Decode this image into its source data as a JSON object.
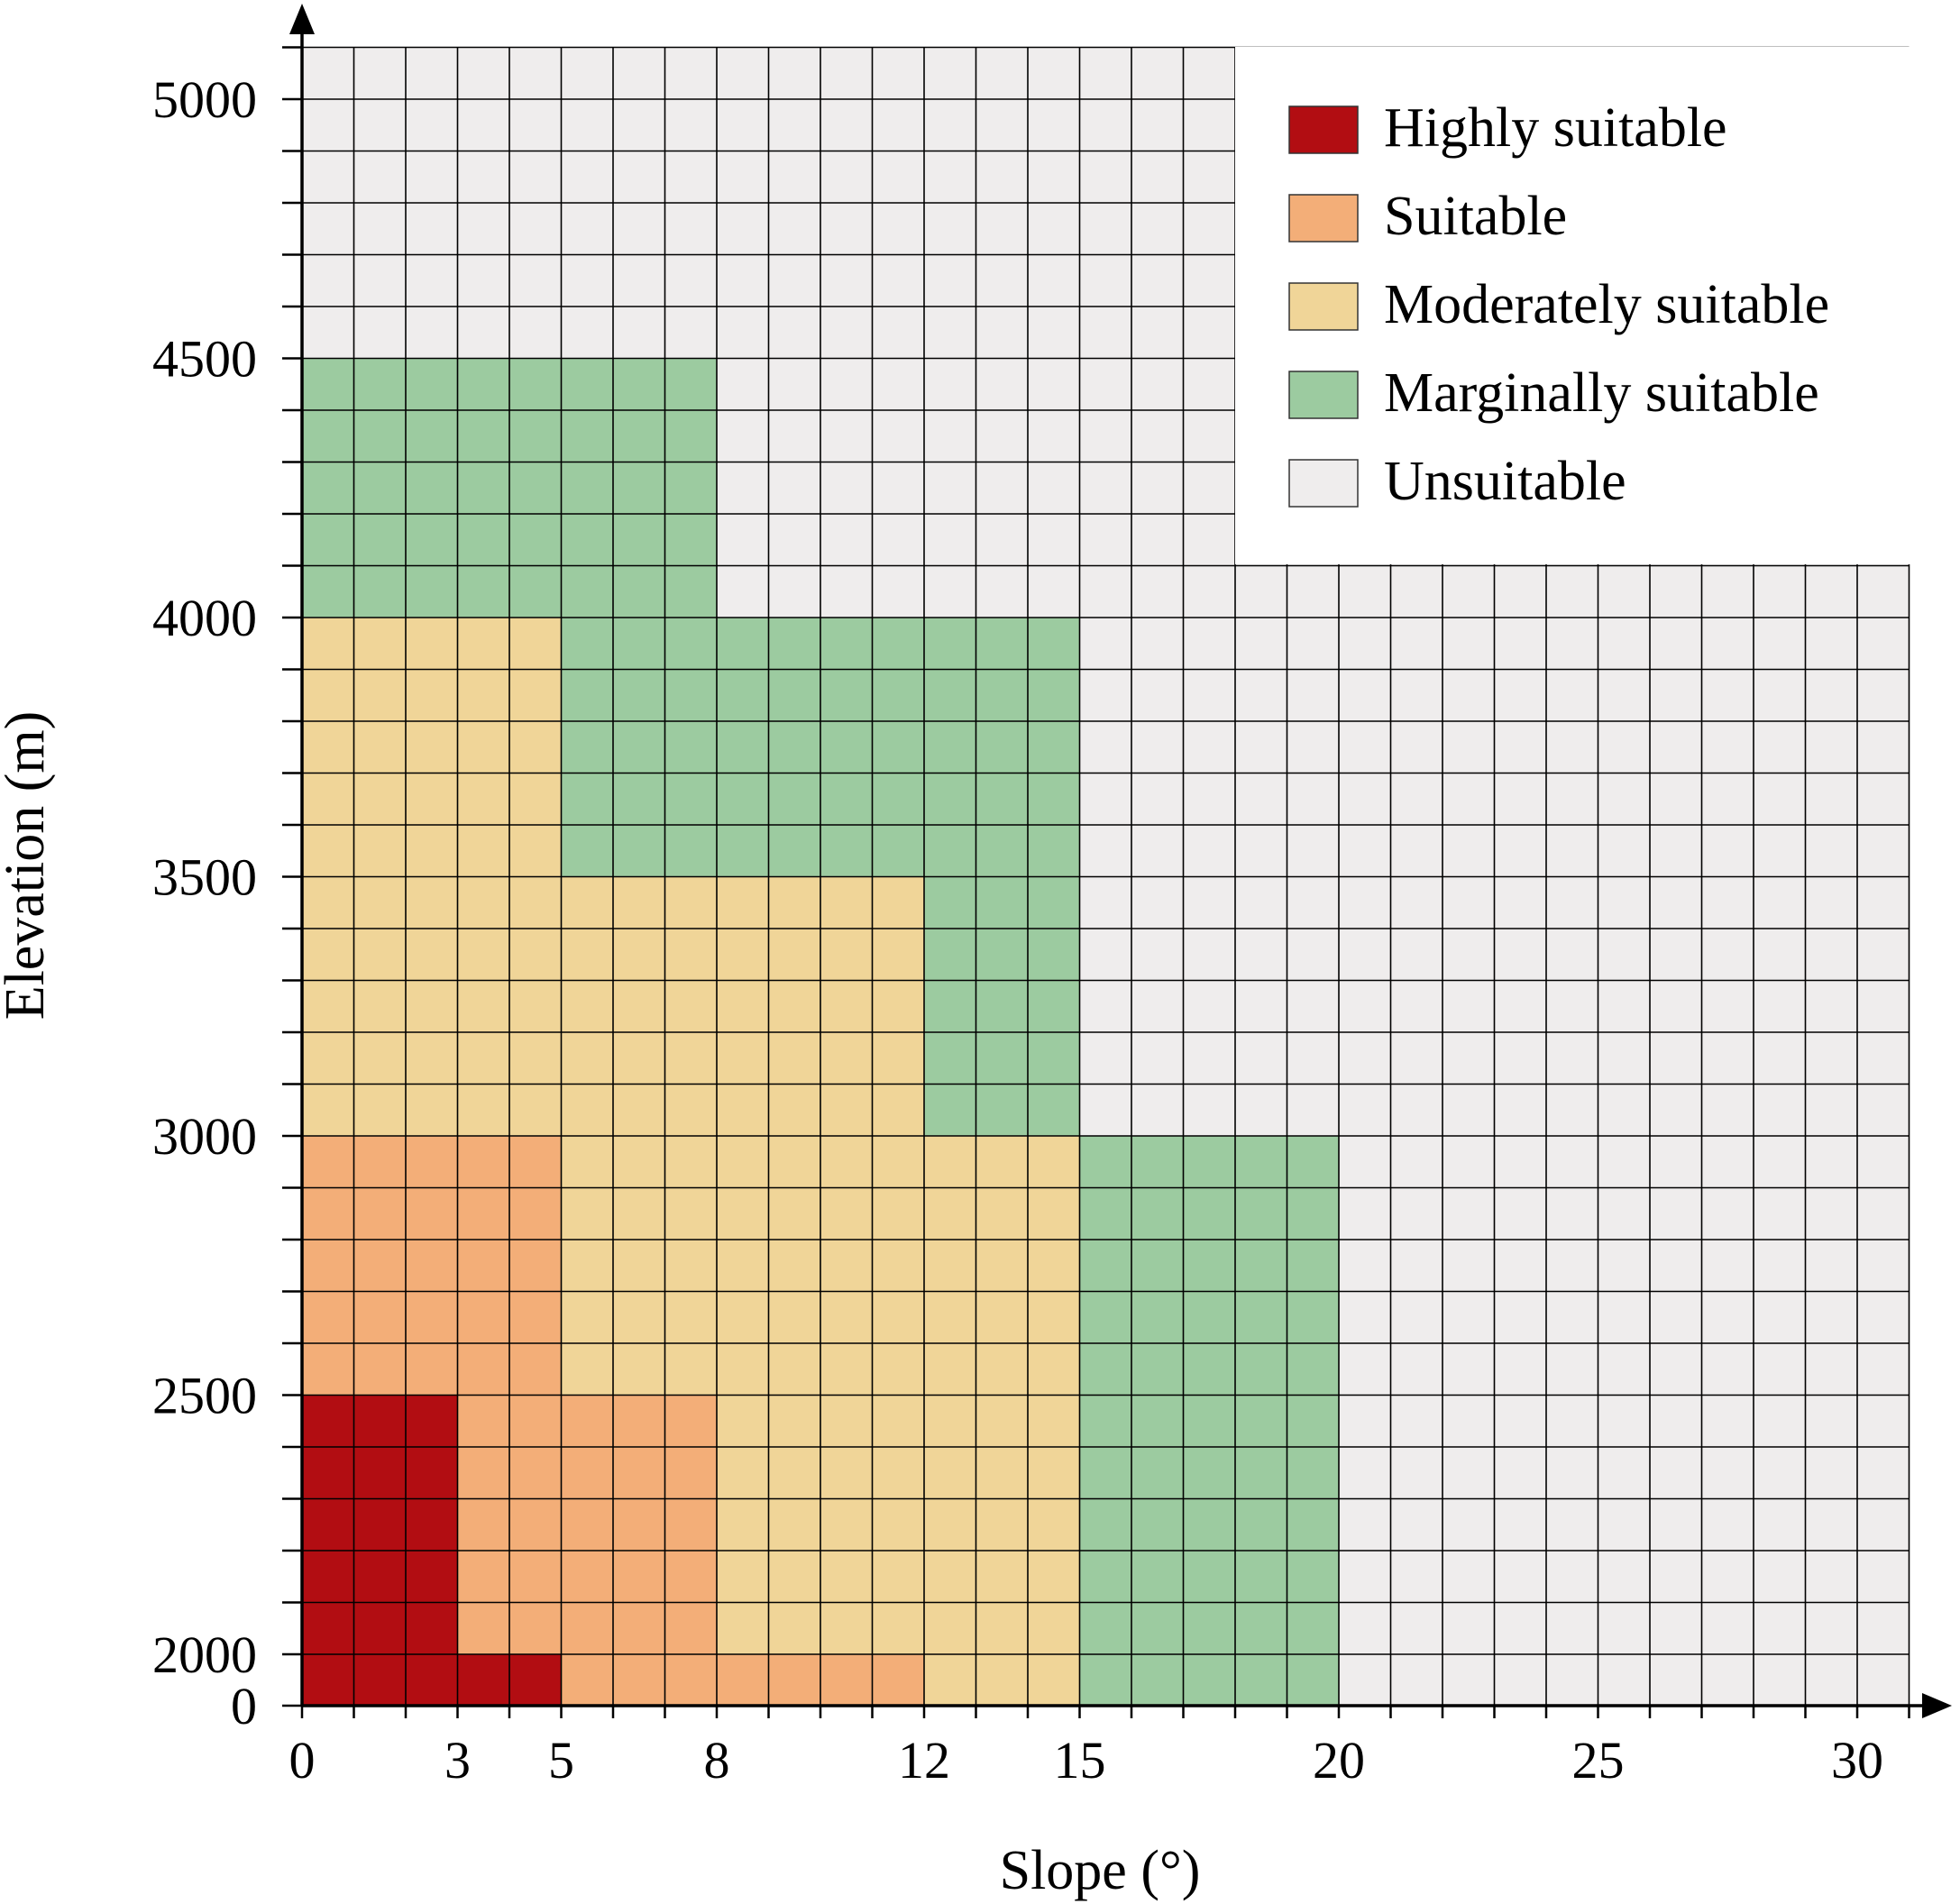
{
  "chart_data": {
    "type": "heatmap",
    "xlabel": "Slope (°)",
    "ylabel": "Elevation (m)",
    "x_range": [
      0,
      31
    ],
    "x_cell_size": 1,
    "x_ticks": [
      0,
      3,
      5,
      8,
      12,
      15,
      20,
      25,
      30
    ],
    "y_ticks": [
      0,
      2000,
      2500,
      3000,
      3500,
      4000,
      4500,
      5000
    ],
    "y_rows_top_m": [
      2000,
      2100,
      2200,
      2300,
      2400,
      2500,
      2600,
      2700,
      2800,
      2900,
      3000,
      3100,
      3200,
      3300,
      3400,
      3500,
      3600,
      3700,
      3800,
      3900,
      4000,
      4100,
      4200,
      4300,
      4400,
      4500,
      4600,
      4700,
      4800,
      4900,
      5000,
      5100
    ],
    "grid": true,
    "legend_position": "top-right",
    "categories": [
      {
        "name": "Highly suitable",
        "color": "#b20d12"
      },
      {
        "name": "Suitable",
        "color": "#f3ae78"
      },
      {
        "name": "Moderately suitable",
        "color": "#f0d598"
      },
      {
        "name": "Marginally suitable",
        "color": "#9ccba0"
      },
      {
        "name": "Unsuitable",
        "color": "#efeded"
      }
    ],
    "regions": [
      {
        "category": "Highly suitable",
        "slope": [
          0,
          3
        ],
        "elevation": [
          0,
          2500
        ]
      },
      {
        "category": "Highly suitable",
        "slope": [
          3,
          5
        ],
        "elevation": [
          0,
          2000
        ]
      },
      {
        "category": "Suitable",
        "slope": [
          3,
          5
        ],
        "elevation": [
          2000,
          3000
        ]
      },
      {
        "category": "Suitable",
        "slope": [
          0,
          3
        ],
        "elevation": [
          2500,
          3000
        ]
      },
      {
        "category": "Suitable",
        "slope": [
          5,
          8
        ],
        "elevation": [
          0,
          2500
        ]
      },
      {
        "category": "Suitable",
        "slope": [
          8,
          12
        ],
        "elevation": [
          0,
          2000
        ]
      },
      {
        "category": "Moderately suitable",
        "slope": [
          8,
          12
        ],
        "elevation": [
          2000,
          3500
        ]
      },
      {
        "category": "Moderately suitable",
        "slope": [
          5,
          8
        ],
        "elevation": [
          2500,
          3500
        ]
      },
      {
        "category": "Moderately suitable",
        "slope": [
          0,
          5
        ],
        "elevation": [
          3000,
          4000
        ]
      },
      {
        "category": "Moderately suitable",
        "slope": [
          12,
          15
        ],
        "elevation": [
          0,
          3000
        ]
      },
      {
        "category": "Marginally suitable",
        "slope": [
          12,
          15
        ],
        "elevation": [
          3000,
          4000
        ]
      },
      {
        "category": "Marginally suitable",
        "slope": [
          5,
          12
        ],
        "elevation": [
          3500,
          4000
        ]
      },
      {
        "category": "Marginally suitable",
        "slope": [
          0,
          8
        ],
        "elevation": [
          4000,
          4500
        ]
      },
      {
        "category": "Marginally suitable",
        "slope": [
          15,
          20
        ],
        "elevation": [
          0,
          3000
        ]
      }
    ]
  }
}
